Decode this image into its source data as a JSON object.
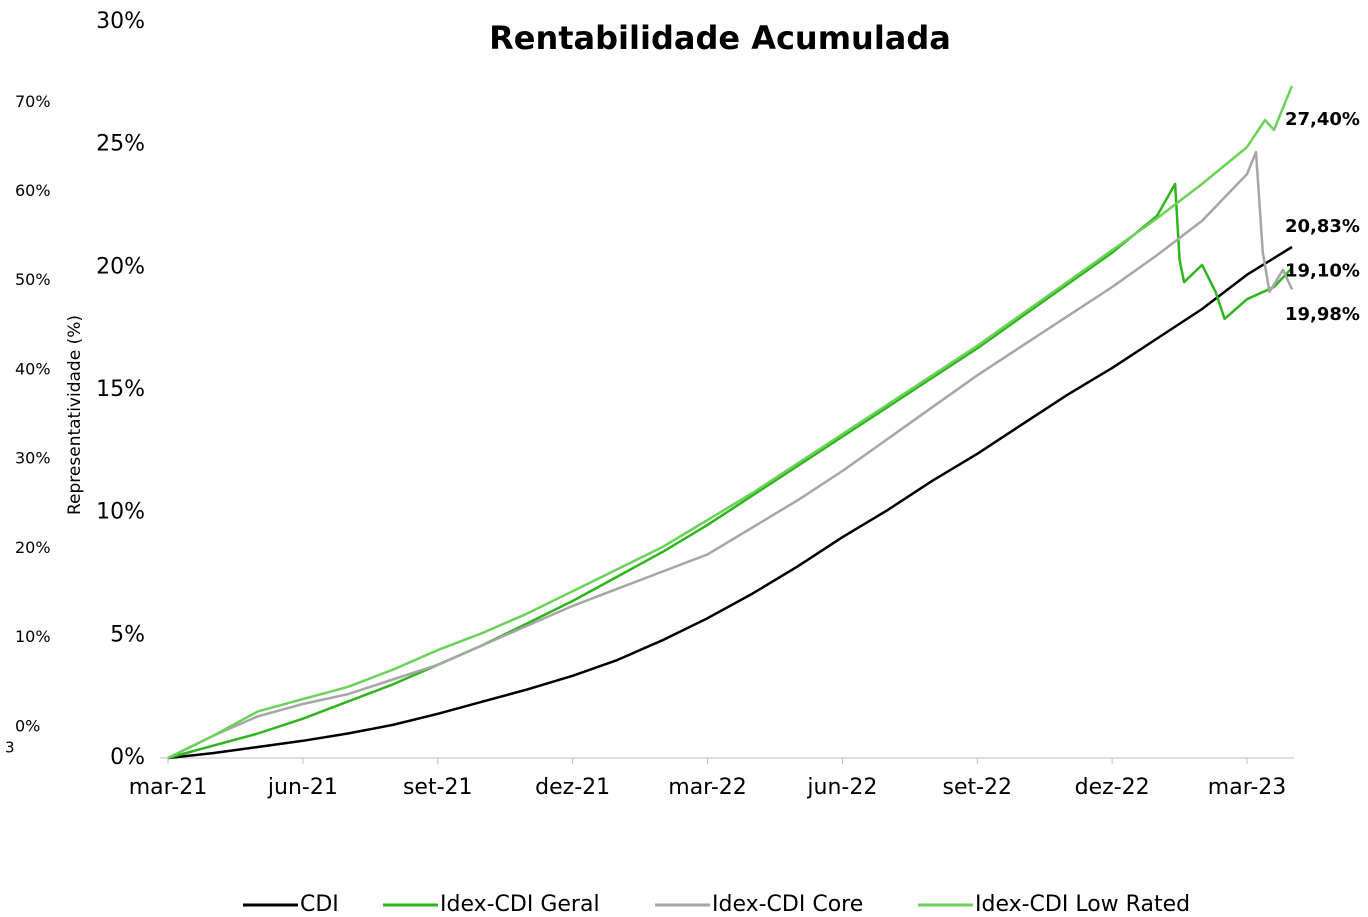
{
  "chart_data": {
    "type": "line",
    "title": "Rentabilidade Acumulada",
    "y2_label": "Representatividade (%)",
    "annotation": "3",
    "xlim": [
      0,
      25
    ],
    "xticks": [
      {
        "value": 0,
        "label": "mar-21"
      },
      {
        "value": 3,
        "label": "jun-21"
      },
      {
        "value": 6,
        "label": "set-21"
      },
      {
        "value": 9,
        "label": "dez-21"
      },
      {
        "value": 12,
        "label": "mar-22"
      },
      {
        "value": 15,
        "label": "jun-22"
      },
      {
        "value": 18,
        "label": "set-22"
      },
      {
        "value": 21,
        "label": "dez-22"
      },
      {
        "value": 24,
        "label": "mar-23"
      }
    ],
    "ylim": [
      0,
      30
    ],
    "yticks": [
      {
        "value": 0,
        "label": "0%"
      },
      {
        "value": 5,
        "label": "5%"
      },
      {
        "value": 10,
        "label": "10%"
      },
      {
        "value": 15,
        "label": "15%"
      },
      {
        "value": 20,
        "label": "20%"
      },
      {
        "value": 25,
        "label": "25%"
      },
      {
        "value": 30,
        "label": "30%"
      }
    ],
    "y2lim": [
      -3.5,
      79
    ],
    "y2ticks": [
      {
        "value": 0,
        "label": "0%"
      },
      {
        "value": 10,
        "label": "10%"
      },
      {
        "value": 20,
        "label": "20%"
      },
      {
        "value": 30,
        "label": "30%"
      },
      {
        "value": 40,
        "label": "40%"
      },
      {
        "value": 50,
        "label": "50%"
      },
      {
        "value": 60,
        "label": "60%"
      },
      {
        "value": 70,
        "label": "70%"
      }
    ],
    "series": [
      {
        "name": "CDI",
        "color": "#000000",
        "end_label": "20,83%",
        "x": [
          0,
          1,
          2,
          3,
          4,
          5,
          6,
          7,
          8,
          9,
          10,
          11,
          12,
          13,
          14,
          15,
          16,
          17,
          18,
          19,
          20,
          21,
          22,
          23,
          24,
          25
        ],
        "values": [
          0,
          0.2,
          0.45,
          0.7,
          1.0,
          1.35,
          1.8,
          2.3,
          2.8,
          3.35,
          4.0,
          4.8,
          5.7,
          6.7,
          7.8,
          9.0,
          10.1,
          11.3,
          12.4,
          13.6,
          14.8,
          15.9,
          17.1,
          18.3,
          19.7,
          20.83
        ]
      },
      {
        "name": "Idex-CDI Geral",
        "color": "#2fb51c",
        "end_label": "19,98%",
        "x": [
          0,
          1,
          2,
          3,
          4,
          5,
          6,
          7,
          8,
          9,
          10,
          11,
          12,
          13,
          14,
          15,
          16,
          17,
          18,
          19,
          20,
          21,
          22,
          22.4,
          22.5,
          22.6,
          23,
          23.3,
          23.5,
          24,
          24.6,
          25
        ],
        "values": [
          0,
          0.5,
          1.0,
          1.6,
          2.3,
          3.0,
          3.8,
          4.6,
          5.5,
          6.4,
          7.4,
          8.4,
          9.5,
          10.7,
          11.9,
          13.1,
          14.3,
          15.5,
          16.7,
          18.0,
          19.3,
          20.6,
          22.1,
          23.4,
          20.3,
          19.4,
          20.1,
          19.0,
          17.9,
          18.7,
          19.2,
          19.98
        ]
      },
      {
        "name": "Idex-CDI Core",
        "color": "#a6a6a6",
        "end_label": "19,10%",
        "x": [
          0,
          1,
          2,
          3,
          4,
          5,
          6,
          7,
          8,
          9,
          10,
          11,
          12,
          13,
          14,
          15,
          16,
          17,
          18,
          19,
          20,
          21,
          22,
          23,
          24,
          24.2,
          24.35,
          24.5,
          24.8,
          25
        ],
        "values": [
          0,
          0.9,
          1.7,
          2.2,
          2.6,
          3.2,
          3.8,
          4.6,
          5.4,
          6.2,
          6.9,
          7.6,
          8.3,
          9.4,
          10.5,
          11.7,
          13.0,
          14.3,
          15.6,
          16.8,
          18.0,
          19.2,
          20.5,
          21.9,
          23.8,
          24.7,
          20.6,
          19.0,
          19.9,
          19.1
        ]
      },
      {
        "name": "Idex-CDI Low Rated",
        "color": "#6bd259",
        "end_label": "27,40%",
        "x": [
          0,
          1,
          2,
          3,
          4,
          5,
          6,
          7,
          8,
          9,
          10,
          11,
          12,
          13,
          14,
          15,
          16,
          17,
          18,
          19,
          20,
          21,
          22,
          23,
          24,
          24.4,
          24.6,
          25
        ],
        "values": [
          0,
          0.9,
          1.9,
          2.4,
          2.9,
          3.6,
          4.4,
          5.1,
          5.9,
          6.8,
          7.7,
          8.6,
          9.7,
          10.8,
          12.0,
          13.2,
          14.4,
          15.6,
          16.8,
          18.1,
          19.4,
          20.7,
          22.0,
          23.4,
          24.9,
          26.0,
          25.6,
          27.4
        ]
      }
    ]
  }
}
